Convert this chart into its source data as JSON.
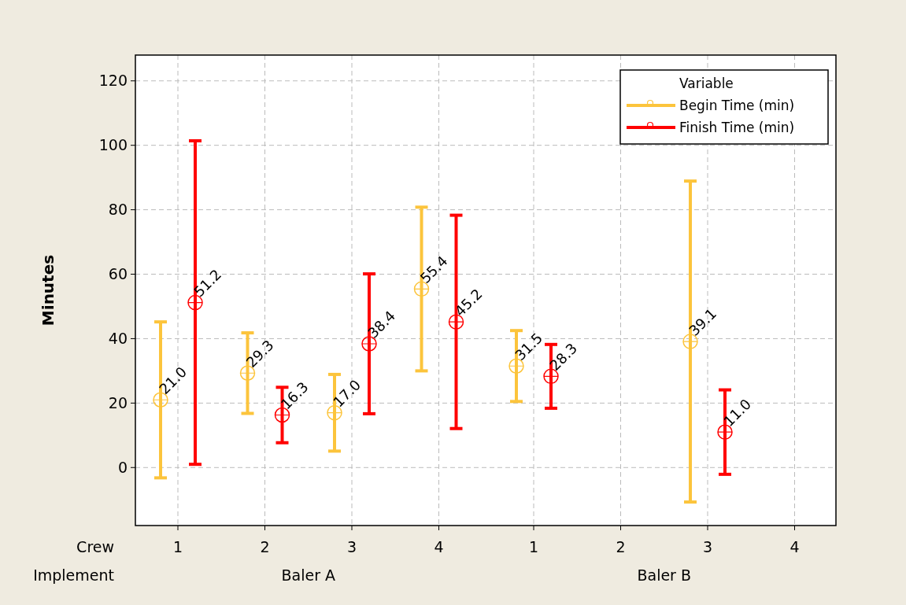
{
  "chart_data": {
    "type": "scatter",
    "ylabel": "Minutes",
    "legend_title": "Variable",
    "categories": [
      "1",
      "2",
      "3",
      "4",
      "1",
      "2",
      "3",
      "4"
    ],
    "annotations": [
      "Crew",
      "Implement",
      "Baler A",
      "Baler B"
    ],
    "series": [
      {
        "name": "Begin Time (min)",
        "color": "#fcc43c",
        "values": [
          21.0,
          29.3,
          17.0,
          55.4,
          31.5,
          null,
          39.1,
          null
        ],
        "value_labels": [
          "21.0",
          "29.3",
          "17.0",
          "55.4",
          "31.5",
          null,
          "39.1",
          null
        ],
        "errors": [
          24.2,
          12.5,
          11.9,
          25.4,
          11.0,
          null,
          49.8,
          null
        ]
      },
      {
        "name": "Finish Time (min)",
        "color": "#ff0000",
        "values": [
          51.2,
          16.3,
          38.4,
          45.2,
          28.3,
          null,
          11.0,
          null
        ],
        "value_labels": [
          "51.2",
          "16.3",
          "38.4",
          "45.2",
          "28.3",
          null,
          "11.0",
          null
        ],
        "errors": [
          50.2,
          8.6,
          21.7,
          33.1,
          9.9,
          null,
          13.1,
          null
        ]
      }
    ],
    "ylim": [
      -18,
      128
    ],
    "yticks": [
      0,
      20,
      40,
      60,
      80,
      100,
      120
    ],
    "grid": true,
    "legend": "top right",
    "marker": "circle"
  }
}
